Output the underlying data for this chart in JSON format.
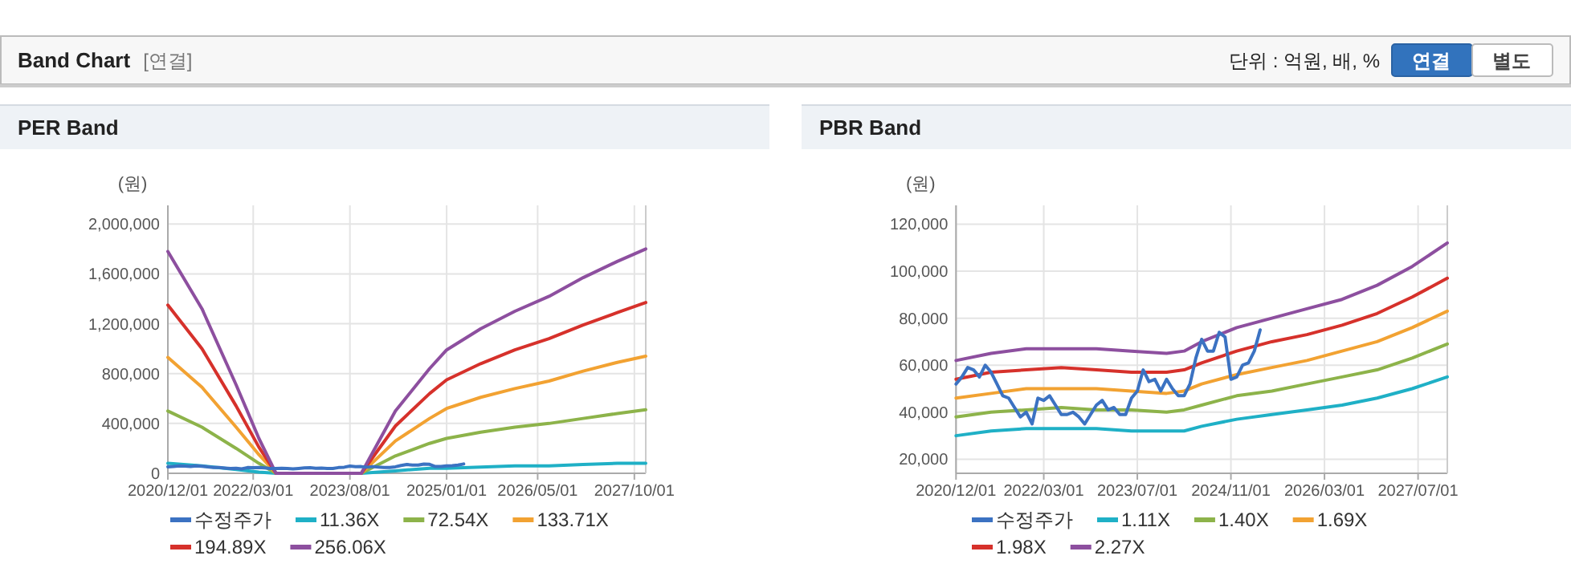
{
  "chart_data": [
    {
      "type": "other",
      "title": "Band Chart",
      "subtitle": "[연결]",
      "annotations": [
        "단위 : 억원, 배, %",
        "연결",
        "별도"
      ]
    },
    {
      "type": "line",
      "title": "PER Band",
      "ylabel": "(원)",
      "grid": true,
      "legend": "bottom",
      "x": [
        "2020-12",
        "2021-06",
        "2021-12",
        "2022-04",
        "2022-07",
        "2023-01",
        "2023-10",
        "2024-04",
        "2024-10",
        "2025-01",
        "2025-07",
        "2026-01",
        "2026-07",
        "2027-01",
        "2027-07",
        "2027-12"
      ],
      "xlim": [
        "2020-12-01",
        "2027-12-01"
      ],
      "ylim": [
        0,
        2150000
      ],
      "xticks": [
        {
          "value": "2020-12-01",
          "label": "2020/12/01"
        },
        {
          "value": "2022-03-01",
          "label": "2022/03/01"
        },
        {
          "value": "2023-08-01",
          "label": "2023/08/01"
        },
        {
          "value": "2025-01-01",
          "label": "2025/01/01"
        },
        {
          "value": "2026-05-01",
          "label": "2026/05/01"
        },
        {
          "value": "2027-10-01",
          "label": "2027/10/01"
        }
      ],
      "yticks": [
        {
          "value": 0,
          "label": "0"
        },
        {
          "value": 400000,
          "label": "400,000"
        },
        {
          "value": 800000,
          "label": "800,000"
        },
        {
          "value": 1200000,
          "label": "1,200,000"
        },
        {
          "value": 1600000,
          "label": "1,600,000"
        },
        {
          "value": 2000000,
          "label": "2,000,000"
        }
      ],
      "series": [
        {
          "name": "수정주가",
          "color": "#3b72c2",
          "x": [
            "2020-12",
            "2021-01",
            "2021-02",
            "2021-03",
            "2021-04",
            "2021-05",
            "2021-06",
            "2021-07",
            "2021-08",
            "2021-09",
            "2021-10",
            "2021-11",
            "2021-12",
            "2022-01",
            "2022-02",
            "2022-03",
            "2022-04",
            "2022-05",
            "2022-06",
            "2022-07",
            "2022-08",
            "2022-09",
            "2022-10",
            "2022-11",
            "2022-12",
            "2023-01",
            "2023-02",
            "2023-03",
            "2023-04",
            "2023-05",
            "2023-06",
            "2023-07",
            "2023-08",
            "2023-09",
            "2023-10",
            "2023-11",
            "2023-12",
            "2024-01",
            "2024-02",
            "2024-03",
            "2024-04",
            "2024-05",
            "2024-06",
            "2024-07",
            "2024-08",
            "2024-09",
            "2024-10",
            "2024-11",
            "2024-12",
            "2025-01",
            "2025-02",
            "2025-03",
            "2025-04"
          ],
          "values": [
            52000,
            55000,
            59000,
            58000,
            55000,
            60000,
            57000,
            52000,
            47000,
            46000,
            42000,
            38000,
            40000,
            35000,
            46000,
            45000,
            47000,
            43000,
            39000,
            39000,
            40000,
            38000,
            35000,
            39000,
            43000,
            45000,
            41000,
            42000,
            39000,
            39000,
            46000,
            49000,
            58000,
            53000,
            54000,
            49000,
            54000,
            50000,
            47000,
            47000,
            52000,
            63000,
            71000,
            66000,
            66000,
            74000,
            72000,
            54000,
            55000,
            60000,
            61000,
            66000,
            75000
          ]
        },
        {
          "name": "11.36X",
          "color": "#1fb0c6",
          "values": [
            80000,
            60000,
            30000,
            10000,
            0,
            0,
            0,
            20000,
            40000,
            40000,
            50000,
            60000,
            60000,
            70000,
            80000,
            80000
          ]
        },
        {
          "name": "72.54X",
          "color": "#8db34a",
          "values": [
            500000,
            370000,
            200000,
            80000,
            0,
            0,
            0,
            140000,
            240000,
            280000,
            330000,
            370000,
            400000,
            440000,
            480000,
            510000
          ]
        },
        {
          "name": "133.71X",
          "color": "#f2a232",
          "values": [
            930000,
            690000,
            370000,
            150000,
            0,
            0,
            0,
            260000,
            440000,
            520000,
            610000,
            680000,
            740000,
            820000,
            890000,
            940000
          ]
        },
        {
          "name": "194.89X",
          "color": "#d6312b",
          "values": [
            1350000,
            1000000,
            540000,
            210000,
            0,
            0,
            0,
            380000,
            640000,
            750000,
            880000,
            990000,
            1080000,
            1190000,
            1290000,
            1370000
          ]
        },
        {
          "name": "256.06X",
          "color": "#8d4f9f",
          "values": [
            1780000,
            1320000,
            710000,
            280000,
            0,
            0,
            0,
            500000,
            840000,
            990000,
            1160000,
            1300000,
            1420000,
            1570000,
            1700000,
            1800000
          ]
        }
      ]
    },
    {
      "type": "line",
      "title": "PBR Band",
      "ylabel": "(원)",
      "grid": true,
      "legend": "bottom",
      "x": [
        "2020-12",
        "2021-06",
        "2021-12",
        "2022-06",
        "2022-12",
        "2023-06",
        "2023-12",
        "2024-03",
        "2024-06",
        "2024-12",
        "2025-06",
        "2025-12",
        "2026-06",
        "2026-12",
        "2027-06",
        "2027-12"
      ],
      "xlim": [
        "2020-12-01",
        "2027-12-01"
      ],
      "ylim": [
        14000,
        128000
      ],
      "xticks": [
        {
          "value": "2020-12-01",
          "label": "2020/12/01"
        },
        {
          "value": "2022-03-01",
          "label": "2022/03/01"
        },
        {
          "value": "2023-07-01",
          "label": "2023/07/01"
        },
        {
          "value": "2024-11-01",
          "label": "2024/11/01"
        },
        {
          "value": "2026-03-01",
          "label": "2026/03/01"
        },
        {
          "value": "2027-07-01",
          "label": "2027/07/01"
        }
      ],
      "yticks": [
        {
          "value": 20000,
          "label": "20,000"
        },
        {
          "value": 40000,
          "label": "40,000"
        },
        {
          "value": 60000,
          "label": "60,000"
        },
        {
          "value": 80000,
          "label": "80,000"
        },
        {
          "value": 100000,
          "label": "100,000"
        },
        {
          "value": 120000,
          "label": "120,000"
        }
      ],
      "series": [
        {
          "name": "수정주가",
          "color": "#3b72c2",
          "x": [
            "2020-12",
            "2021-01",
            "2021-02",
            "2021-03",
            "2021-04",
            "2021-05",
            "2021-06",
            "2021-07",
            "2021-08",
            "2021-09",
            "2021-10",
            "2021-11",
            "2021-12",
            "2022-01",
            "2022-02",
            "2022-03",
            "2022-04",
            "2022-05",
            "2022-06",
            "2022-07",
            "2022-08",
            "2022-09",
            "2022-10",
            "2022-11",
            "2022-12",
            "2023-01",
            "2023-02",
            "2023-03",
            "2023-04",
            "2023-05",
            "2023-06",
            "2023-07",
            "2023-08",
            "2023-09",
            "2023-10",
            "2023-11",
            "2023-12",
            "2024-01",
            "2024-02",
            "2024-03",
            "2024-04",
            "2024-05",
            "2024-06",
            "2024-07",
            "2024-08",
            "2024-09",
            "2024-10",
            "2024-11",
            "2024-12",
            "2025-01",
            "2025-02",
            "2025-03",
            "2025-04"
          ],
          "values": [
            52000,
            55000,
            59000,
            58000,
            55000,
            60000,
            57000,
            52000,
            47000,
            46000,
            42000,
            38000,
            40000,
            35000,
            46000,
            45000,
            47000,
            43000,
            39000,
            39000,
            40000,
            38000,
            35000,
            39000,
            43000,
            45000,
            41000,
            42000,
            39000,
            39000,
            46000,
            49000,
            58000,
            53000,
            54000,
            49000,
            54000,
            50000,
            47000,
            47000,
            52000,
            63000,
            71000,
            66000,
            66000,
            74000,
            72000,
            54000,
            55000,
            60000,
            61000,
            66000,
            75000
          ]
        },
        {
          "name": "1.11X",
          "color": "#1fb0c6",
          "values": [
            30000,
            32000,
            33000,
            33000,
            33000,
            32000,
            32000,
            32000,
            34000,
            37000,
            39000,
            41000,
            43000,
            46000,
            50000,
            55000
          ]
        },
        {
          "name": "1.40X",
          "color": "#8db34a",
          "values": [
            38000,
            40000,
            41000,
            42000,
            41000,
            41000,
            40000,
            41000,
            43000,
            47000,
            49000,
            52000,
            55000,
            58000,
            63000,
            69000
          ]
        },
        {
          "name": "1.69X",
          "color": "#f2a232",
          "values": [
            46000,
            48000,
            50000,
            50000,
            50000,
            49000,
            48000,
            49000,
            52000,
            56000,
            59000,
            62000,
            66000,
            70000,
            76000,
            83000
          ]
        },
        {
          "name": "1.98X",
          "color": "#d6312b",
          "values": [
            54000,
            57000,
            58000,
            59000,
            58000,
            57000,
            57000,
            58000,
            61000,
            66000,
            70000,
            73000,
            77000,
            82000,
            89000,
            97000
          ]
        },
        {
          "name": "2.27X",
          "color": "#8d4f9f",
          "values": [
            62000,
            65000,
            67000,
            67000,
            67000,
            66000,
            65000,
            66000,
            70000,
            76000,
            80000,
            84000,
            88000,
            94000,
            102000,
            112000
          ]
        }
      ]
    }
  ]
}
